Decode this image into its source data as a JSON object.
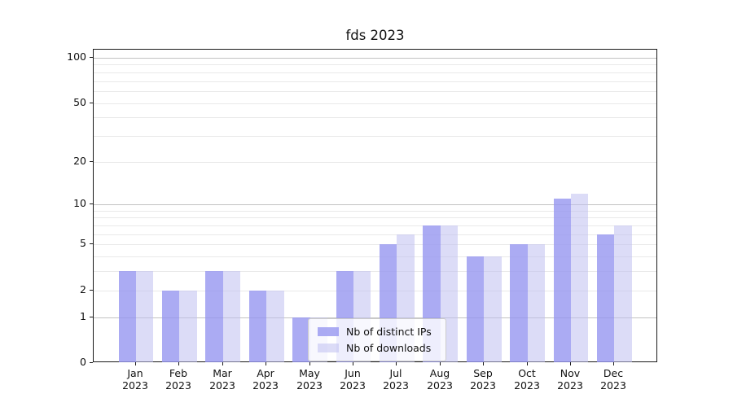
{
  "chart_data": {
    "type": "bar",
    "title": "fds 2023",
    "categories": [
      "Jan 2023",
      "Feb 2023",
      "Mar 2023",
      "Apr 2023",
      "May 2023",
      "Jun 2023",
      "Jul 2023",
      "Aug 2023",
      "Sep 2023",
      "Oct 2023",
      "Nov 2023",
      "Dec 2023"
    ],
    "series": [
      {
        "name": "Nb of distinct IPs",
        "color": "#9696f0",
        "alpha": 0.8,
        "values": [
          3,
          2,
          3,
          2,
          1,
          3,
          5,
          7,
          4,
          5,
          11,
          6
        ]
      },
      {
        "name": "Nb of downloads",
        "color": "#c0c0f0",
        "alpha": 0.55,
        "values": [
          3,
          2,
          3,
          2,
          1,
          3,
          6,
          7,
          4,
          5,
          12,
          7
        ]
      }
    ],
    "xlabel": "",
    "ylabel": "",
    "yscale": "log1p",
    "ylim": [
      0,
      100
    ],
    "yticks": [
      0,
      1,
      2,
      5,
      10,
      20,
      50,
      100
    ],
    "major_gridlines": [
      1,
      10,
      100
    ],
    "minor_gridlines": [
      2,
      3,
      4,
      5,
      6,
      7,
      8,
      9,
      20,
      30,
      40,
      50,
      60,
      70,
      80,
      90
    ],
    "grid": true,
    "legend_position": "lower-center overlay"
  },
  "colors": {
    "grid_major": "#c2c2c2",
    "grid_minor": "#e9e9e9",
    "axis": "#1a1a1a",
    "background": "#ffffff"
  }
}
